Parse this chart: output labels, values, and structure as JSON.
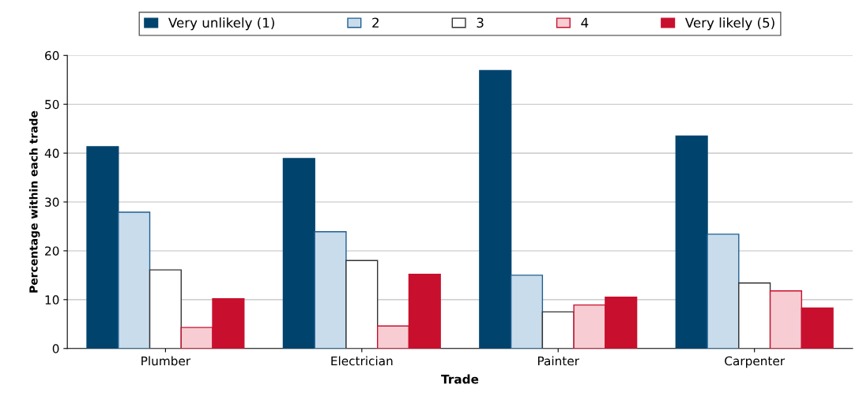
{
  "chart_data": {
    "type": "bar",
    "xlabel": "Trade",
    "ylabel": "Percentage within each trade",
    "categories": [
      "Plumber",
      "Electrician",
      "Painter",
      "Carpenter"
    ],
    "series": [
      {
        "name": "Very unlikely (1)",
        "color": "#00446e",
        "values": [
          41.3,
          38.9,
          56.9,
          43.5
        ]
      },
      {
        "name": "2",
        "color": "#c9dcec",
        "values": [
          27.9,
          23.9,
          15.0,
          23.4
        ]
      },
      {
        "name": "3",
        "color": "#ffffff",
        "values": [
          16.1,
          18.0,
          7.5,
          13.4
        ]
      },
      {
        "name": "4",
        "color": "#f7cdd3",
        "values": [
          4.3,
          4.6,
          8.9,
          11.8
        ]
      },
      {
        "name": "Very likely (5)",
        "color": "#c8102e",
        "values": [
          10.2,
          15.2,
          10.5,
          8.3
        ]
      }
    ],
    "ylim": [
      0,
      60
    ],
    "yticks": [
      0,
      10,
      20,
      30,
      40,
      50,
      60
    ],
    "grid": "y",
    "legend": "top"
  }
}
